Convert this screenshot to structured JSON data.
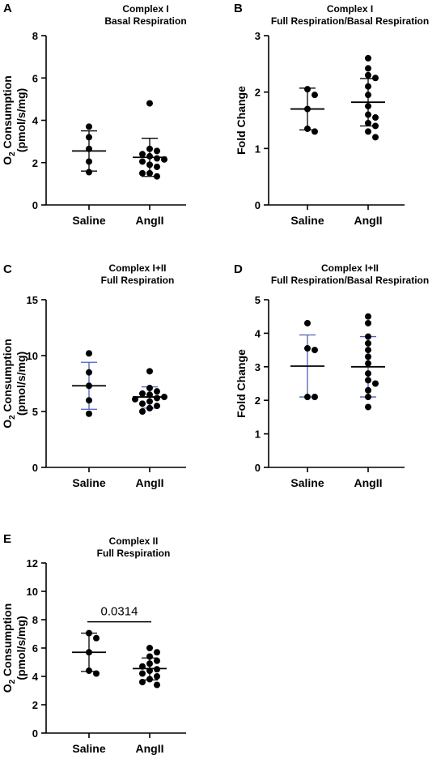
{
  "chart_data": [
    {
      "id": "A",
      "type": "scatter",
      "title": "Complex I",
      "subtitle": "Basal Respiration",
      "ylabel": "O2 Consumption (pmol/s/mg)",
      "ylim": [
        0,
        8
      ],
      "yticks": [
        0,
        2,
        4,
        6,
        8
      ],
      "categories": [
        "Saline",
        "AngII"
      ],
      "error_color": "#000000",
      "groups": [
        {
          "category": "Saline",
          "mean": 2.55,
          "sd_low": 1.6,
          "sd_high": 3.5,
          "points": [
            3.7,
            3.2,
            2.65,
            2.05,
            1.55
          ]
        },
        {
          "category": "AngII",
          "mean": 2.25,
          "sd_low": 1.35,
          "sd_high": 3.15,
          "points": [
            4.8,
            2.65,
            2.55,
            2.4,
            2.3,
            2.2,
            2.15,
            2.05,
            1.9,
            1.8,
            1.5,
            1.5,
            1.35
          ]
        }
      ]
    },
    {
      "id": "B",
      "type": "scatter",
      "title": "Complex I",
      "subtitle": "Full Respiration/Basal Respiration",
      "ylabel": "Fold Change",
      "ylim": [
        0,
        3
      ],
      "yticks": [
        0,
        1,
        2,
        3
      ],
      "categories": [
        "Saline",
        "AngII"
      ],
      "error_color": "#000000",
      "groups": [
        {
          "category": "Saline",
          "mean": 1.7,
          "sd_low": 1.33,
          "sd_high": 2.07,
          "points": [
            2.05,
            1.95,
            1.7,
            1.35,
            1.3
          ]
        },
        {
          "category": "AngII",
          "mean": 1.82,
          "sd_low": 1.4,
          "sd_high": 2.24,
          "points": [
            2.6,
            2.42,
            2.3,
            2.25,
            2.1,
            1.95,
            1.75,
            1.6,
            1.55,
            1.45,
            1.4,
            1.3,
            1.2
          ]
        }
      ]
    },
    {
      "id": "C",
      "type": "scatter",
      "title": "Complex I+II",
      "subtitle": "Full Respiration",
      "ylabel": "O2 Consumption (pmol/s/mg)",
      "ylim": [
        0,
        15
      ],
      "yticks": [
        0,
        5,
        10,
        15
      ],
      "categories": [
        "Saline",
        "AngII"
      ],
      "error_color": "#4a5fc1",
      "groups": [
        {
          "category": "Saline",
          "mean": 7.3,
          "sd_low": 5.2,
          "sd_high": 9.4,
          "points": [
            10.2,
            8.5,
            7.3,
            6.0,
            4.8
          ]
        },
        {
          "category": "AngII",
          "mean": 6.3,
          "sd_low": 5.3,
          "sd_high": 7.2,
          "points": [
            8.6,
            7.1,
            6.8,
            6.6,
            6.5,
            6.3,
            6.2,
            6.1,
            5.9,
            5.7,
            5.5,
            5.3,
            5.0
          ]
        }
      ]
    },
    {
      "id": "D",
      "type": "scatter",
      "title": "Complex I+II",
      "subtitle": "Full Respiration/Basal Respiration",
      "ylabel": "Fold Change",
      "ylim": [
        0,
        5
      ],
      "yticks": [
        0,
        1,
        2,
        3,
        4,
        5
      ],
      "categories": [
        "Saline",
        "AngII"
      ],
      "error_color": "#4a5fc1",
      "groups": [
        {
          "category": "Saline",
          "mean": 3.02,
          "sd_low": 2.1,
          "sd_high": 3.95,
          "points": [
            4.3,
            3.55,
            3.5,
            2.1,
            2.1
          ]
        },
        {
          "category": "AngII",
          "mean": 3.0,
          "sd_low": 2.1,
          "sd_high": 3.9,
          "points": [
            4.5,
            4.3,
            3.9,
            3.7,
            3.5,
            3.3,
            3.1,
            2.8,
            2.6,
            2.5,
            2.3,
            2.1,
            1.8
          ]
        }
      ]
    },
    {
      "id": "E",
      "type": "scatter",
      "title": "Complex II",
      "subtitle": "Full Respiration",
      "ylabel": "O2 Consumption (pmol/s/mg)",
      "ylim": [
        0,
        12
      ],
      "yticks": [
        0,
        2,
        4,
        6,
        8,
        10,
        12
      ],
      "categories": [
        "Saline",
        "AngII"
      ],
      "error_color": "#000000",
      "significance": "0.0314",
      "groups": [
        {
          "category": "Saline",
          "mean": 5.7,
          "sd_low": 4.35,
          "sd_high": 7.05,
          "points": [
            7.05,
            6.7,
            5.7,
            4.4,
            4.2
          ]
        },
        {
          "category": "AngII",
          "mean": 4.55,
          "sd_low": 3.75,
          "sd_high": 5.3,
          "points": [
            6.0,
            5.7,
            5.4,
            5.1,
            4.9,
            4.7,
            4.5,
            4.4,
            4.2,
            4.0,
            3.8,
            3.6,
            3.4
          ]
        }
      ]
    }
  ]
}
